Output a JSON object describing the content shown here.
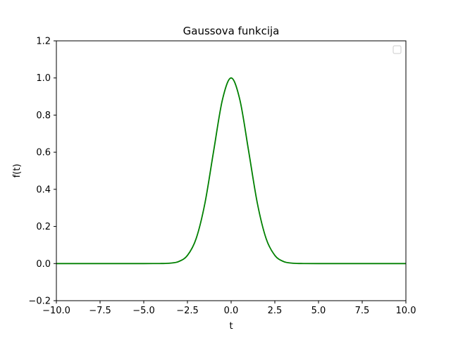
{
  "chart_data": {
    "type": "line",
    "title": "Gaussova funkcija",
    "xlabel": "t",
    "ylabel": "f(t)",
    "xlim": [
      -10,
      10
    ],
    "ylim": [
      -0.2,
      1.2
    ],
    "xticks": [
      -10,
      -7.5,
      -5,
      -2.5,
      0,
      2.5,
      5,
      7.5,
      10
    ],
    "xtick_labels": [
      "−10.0",
      "−7.5",
      "−5.0",
      "−2.5",
      "0.0",
      "2.5",
      "5.0",
      "7.5",
      "10.0"
    ],
    "yticks": [
      -0.2,
      0.0,
      0.2,
      0.4,
      0.6,
      0.8,
      1.0,
      1.2
    ],
    "ytick_labels": [
      "−0.2",
      "0.0",
      "0.2",
      "0.4",
      "0.6",
      "0.8",
      "1.0",
      "1.2"
    ],
    "grid": false,
    "legend": {
      "placement": "top-right",
      "entries": []
    },
    "series": [
      {
        "color": "#008000",
        "x": [
          -10,
          -5,
          -4,
          -3.5,
          -3,
          -2.5,
          -2,
          -1.5,
          -1,
          -0.5,
          0,
          0.5,
          1,
          1.5,
          2,
          2.5,
          3,
          3.5,
          4,
          5,
          10
        ],
        "y": [
          0.0,
          0.0,
          0.0003,
          0.0022,
          0.011,
          0.044,
          0.135,
          0.325,
          0.607,
          0.882,
          1.0,
          0.882,
          0.607,
          0.325,
          0.135,
          0.044,
          0.011,
          0.0022,
          0.0003,
          0.0,
          0.0
        ]
      }
    ]
  }
}
